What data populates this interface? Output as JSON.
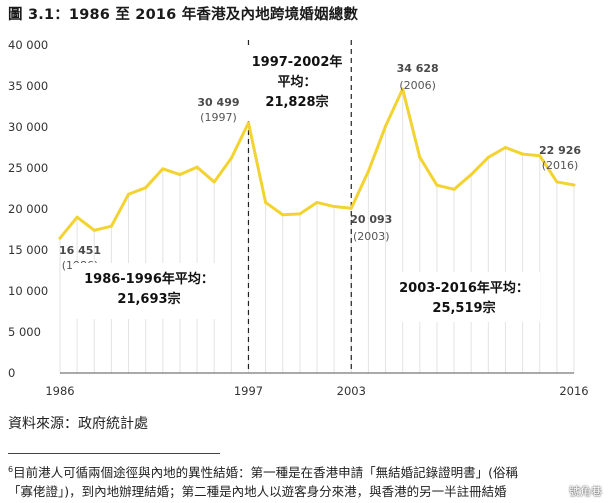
{
  "figure": {
    "title": "圖 3.1：1986 至 2016 年香港及內地跨境婚姻總數"
  },
  "chart_data": {
    "type": "area",
    "title": "",
    "xlabel": "",
    "ylabel": "",
    "x": [
      1986,
      1987,
      1988,
      1989,
      1990,
      1991,
      1992,
      1993,
      1994,
      1995,
      1996,
      1997,
      1998,
      1999,
      2000,
      2001,
      2002,
      2003,
      2004,
      2005,
      2006,
      2007,
      2008,
      2009,
      2010,
      2011,
      2012,
      2013,
      2014,
      2015,
      2016
    ],
    "series": [
      {
        "name": "",
        "color": "#f3d332",
        "values": [
          16451,
          19000,
          17400,
          17900,
          21800,
          22600,
          24900,
          24200,
          25100,
          23300,
          26200,
          30499,
          20800,
          19300,
          19400,
          20800,
          20300,
          20093,
          24600,
          30100,
          34628,
          26300,
          22900,
          22400,
          24200,
          26300,
          27500,
          26700,
          26500,
          23300,
          22926
        ]
      }
    ],
    "xticks": [
      "1986",
      "1997",
      "2003",
      "2016"
    ],
    "yticks": [
      "0",
      "5 000",
      "10 000",
      "15 000",
      "20 000",
      "25 000",
      "30 000",
      "35 000",
      "40 000"
    ],
    "ylim": [
      0,
      40000
    ],
    "grid": false,
    "dividers": [
      1997,
      2003
    ],
    "annotations": [
      {
        "x": 1986,
        "value": "16 451",
        "year": "(1986)"
      },
      {
        "x": 1997,
        "value": "30 499",
        "year": "(1997)"
      },
      {
        "x": 2003,
        "value": "20 093",
        "year": "(2003)"
      },
      {
        "x": 2006,
        "value": "34 628",
        "year": "(2006)"
      },
      {
        "x": 2016,
        "value": "22 926",
        "year": "(2016)"
      }
    ],
    "period_averages": [
      {
        "label": "1986-1996年平均：",
        "value": "21,693宗"
      },
      {
        "label": "1997-2002年",
        "label2": "平均：",
        "value": "21,828宗"
      },
      {
        "label": "2003-2016年平均：",
        "value": "25,519宗"
      }
    ]
  },
  "source": "資料來源：政府統計處",
  "footnote": {
    "mark": "6",
    "line1": "目前港人可循兩個途徑與內地的異性結婚：第一種是在香港申請「無結婚記錄證明書」(俗稱",
    "line2": "「寡佬證」)，到內地辦理結婚；第二種是內地人以遊客身分來港，與香港的另一半註冊結婚"
  },
  "watermark": "號角巷"
}
